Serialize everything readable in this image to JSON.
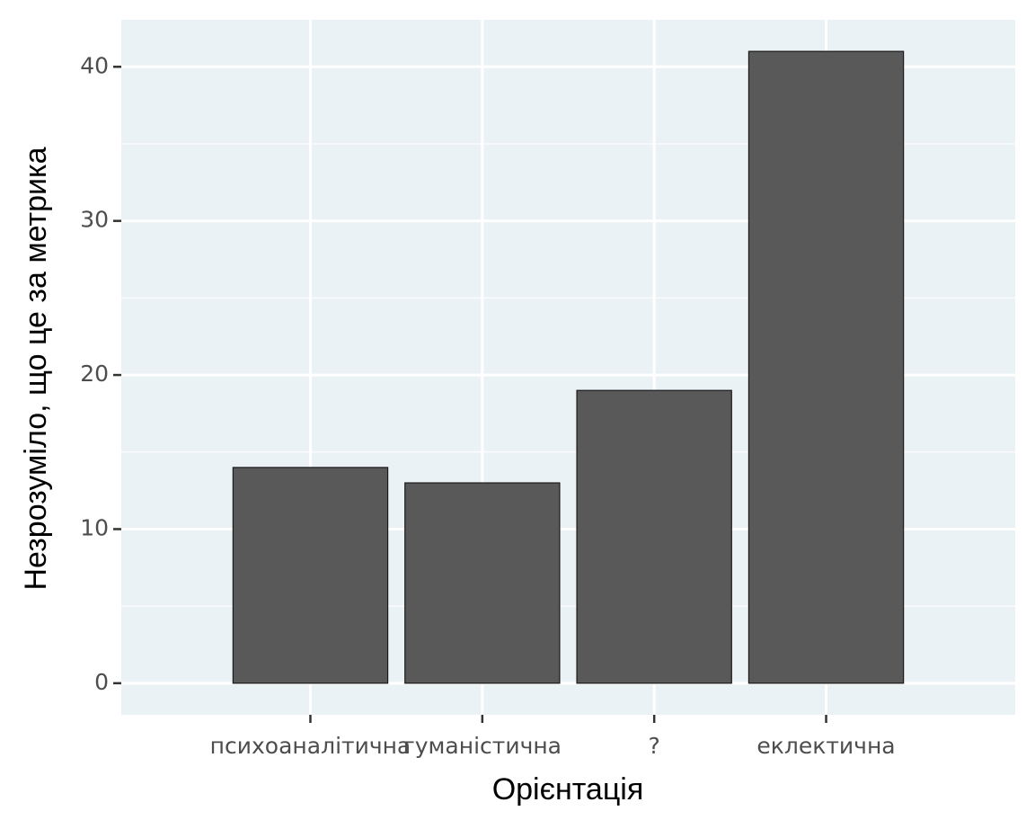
{
  "chart_data": {
    "type": "bar",
    "x_label": "Орієнтація",
    "y_label": "Незрозуміло, що це за метрика",
    "categories": [
      "психоаналітична",
      "гуманістична",
      "?",
      "еклектична"
    ],
    "values": [
      14,
      13,
      19,
      41
    ],
    "color": "#595959",
    "ylim": [
      -2.05,
      43.05
    ],
    "yticks": [
      0,
      10,
      20,
      30,
      40
    ],
    "y_minor_grid": [
      5,
      15,
      25,
      35
    ],
    "grid": true,
    "panel_color": "#ebf2f5"
  }
}
